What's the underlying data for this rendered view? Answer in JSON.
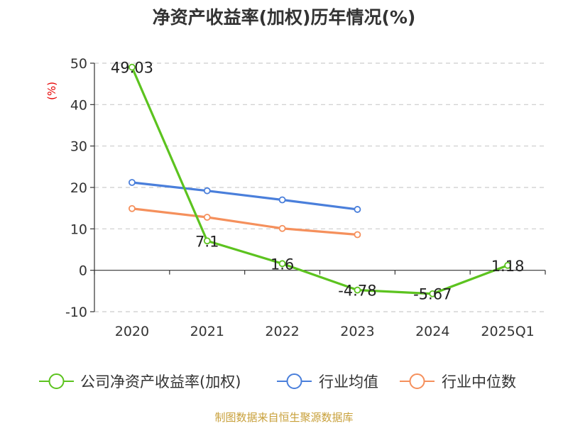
{
  "chart_data": {
    "type": "line",
    "title": "净资产收益率(加权)历年情况(%)",
    "unit_label": "(%)",
    "categories": [
      "2020",
      "2021",
      "2022",
      "2023",
      "2024",
      "2025Q1"
    ],
    "ylim": [
      -10,
      50
    ],
    "yticks": [
      -10,
      0,
      10,
      20,
      30,
      40,
      50
    ],
    "grid": true,
    "legend_position": "bottom",
    "series": [
      {
        "name": "公司净资产收益率(加权)",
        "color": "#5cc31f",
        "values": [
          49.03,
          7.1,
          1.6,
          -4.78,
          -5.67,
          1.18
        ],
        "labels": [
          "49.03",
          "7.1",
          "1.6",
          "-4.78",
          "-5.67",
          "1.18"
        ]
      },
      {
        "name": "行业均值",
        "color": "#4a7fdb",
        "values": [
          21.2,
          19.2,
          17.0,
          14.7,
          null,
          null
        ]
      },
      {
        "name": "行业中位数",
        "color": "#f5905c",
        "values": [
          14.9,
          12.8,
          10.1,
          8.6,
          null,
          null
        ]
      }
    ]
  },
  "source": "制图数据来自恒生聚源数据库"
}
